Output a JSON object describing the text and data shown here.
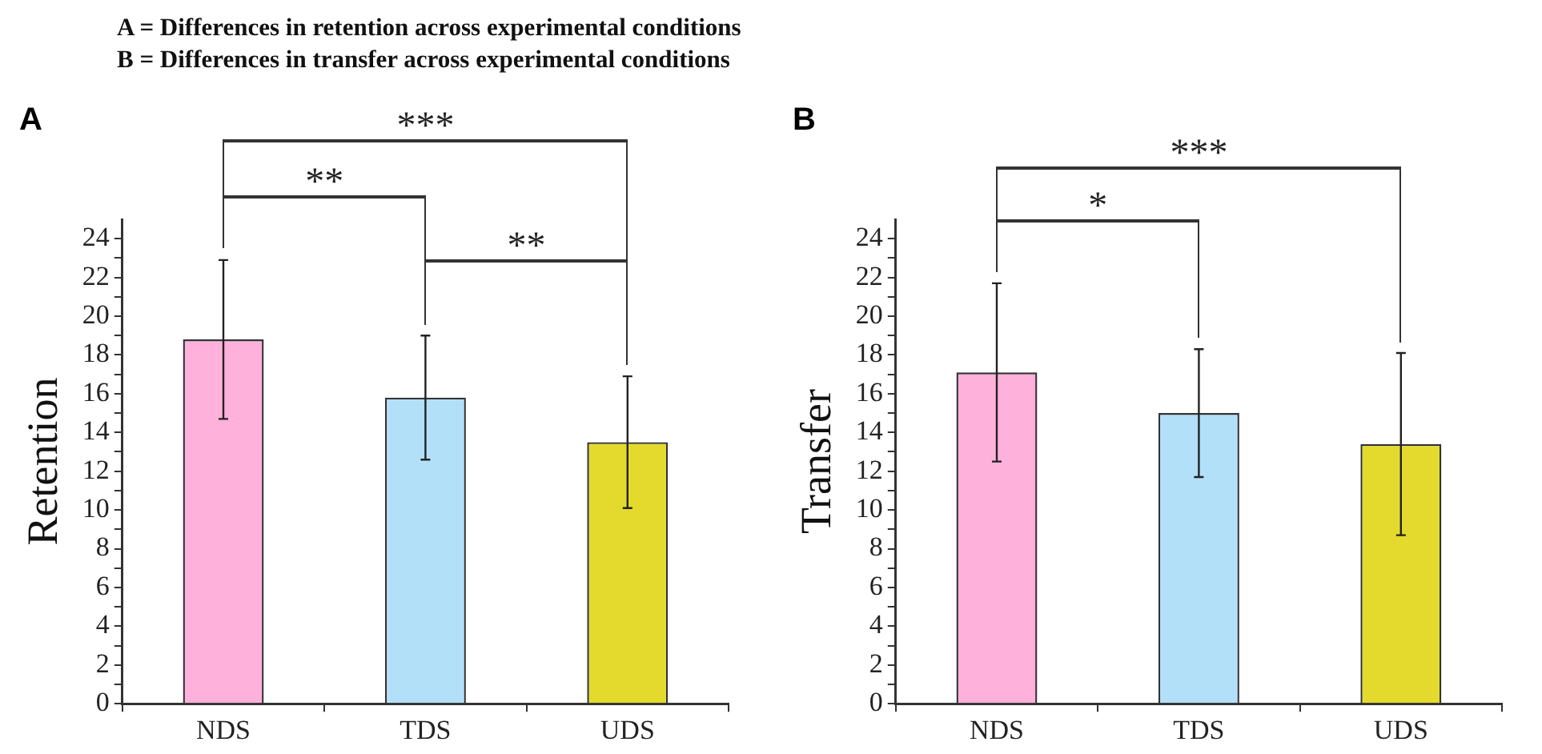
{
  "chart_data": [
    {
      "type": "other",
      "title": "A = Differences in retention across experimental conditions",
      "subtitle": "B = Differences in transfer across experimental conditions"
    },
    {
      "type": "bar",
      "title": "A",
      "ylabel": "Retention",
      "categories": [
        "NDS",
        "TDS",
        "UDS"
      ],
      "values": [
        18.8,
        15.8,
        13.5
      ],
      "errors": [
        4.1,
        3.2,
        3.4
      ],
      "colors": [
        "#fdb1db",
        "#b3e0f9",
        "#e3da2d"
      ],
      "ylim": [
        0,
        25
      ],
      "yticks": [
        0,
        {
          "value": 1,
          "label": null
        },
        2,
        {
          "value": 3,
          "label": null
        },
        4,
        {
          "value": 5,
          "label": null
        },
        6,
        {
          "value": 7,
          "label": null
        },
        8,
        {
          "value": 9,
          "label": null
        },
        10,
        {
          "value": 11,
          "label": null
        },
        12,
        {
          "value": 13,
          "label": null
        },
        14,
        {
          "value": 15,
          "label": null
        },
        16,
        {
          "value": 17,
          "label": null
        },
        18,
        {
          "value": 19,
          "label": null
        },
        20,
        {
          "value": 21,
          "label": null
        },
        22,
        {
          "value": 23,
          "label": null
        },
        24
      ],
      "annotations": [
        "***",
        "**",
        "**"
      ]
    },
    {
      "type": "bar",
      "title": "B",
      "ylabel": "Transfer",
      "categories": [
        "NDS",
        "TDS",
        "UDS"
      ],
      "values": [
        17.1,
        15.0,
        13.4
      ],
      "errors": [
        4.6,
        3.3,
        4.7
      ],
      "colors": [
        "#fdb1db",
        "#b3e0f9",
        "#e3da2d"
      ],
      "ylim": [
        0,
        25
      ],
      "yticks": [
        0,
        {
          "value": 1,
          "label": null
        },
        2,
        {
          "value": 3,
          "label": null
        },
        4,
        {
          "value": 5,
          "label": null
        },
        6,
        {
          "value": 7,
          "label": null
        },
        8,
        {
          "value": 9,
          "label": null
        },
        10,
        {
          "value": 11,
          "label": null
        },
        12,
        {
          "value": 13,
          "label": null
        },
        14,
        {
          "value": 15,
          "label": null
        },
        16,
        {
          "value": 17,
          "label": null
        },
        18,
        {
          "value": 19,
          "label": null
        },
        20,
        {
          "value": 21,
          "label": null
        },
        22,
        {
          "value": 23,
          "label": null
        },
        24
      ],
      "annotations": [
        "***",
        "*"
      ]
    }
  ]
}
